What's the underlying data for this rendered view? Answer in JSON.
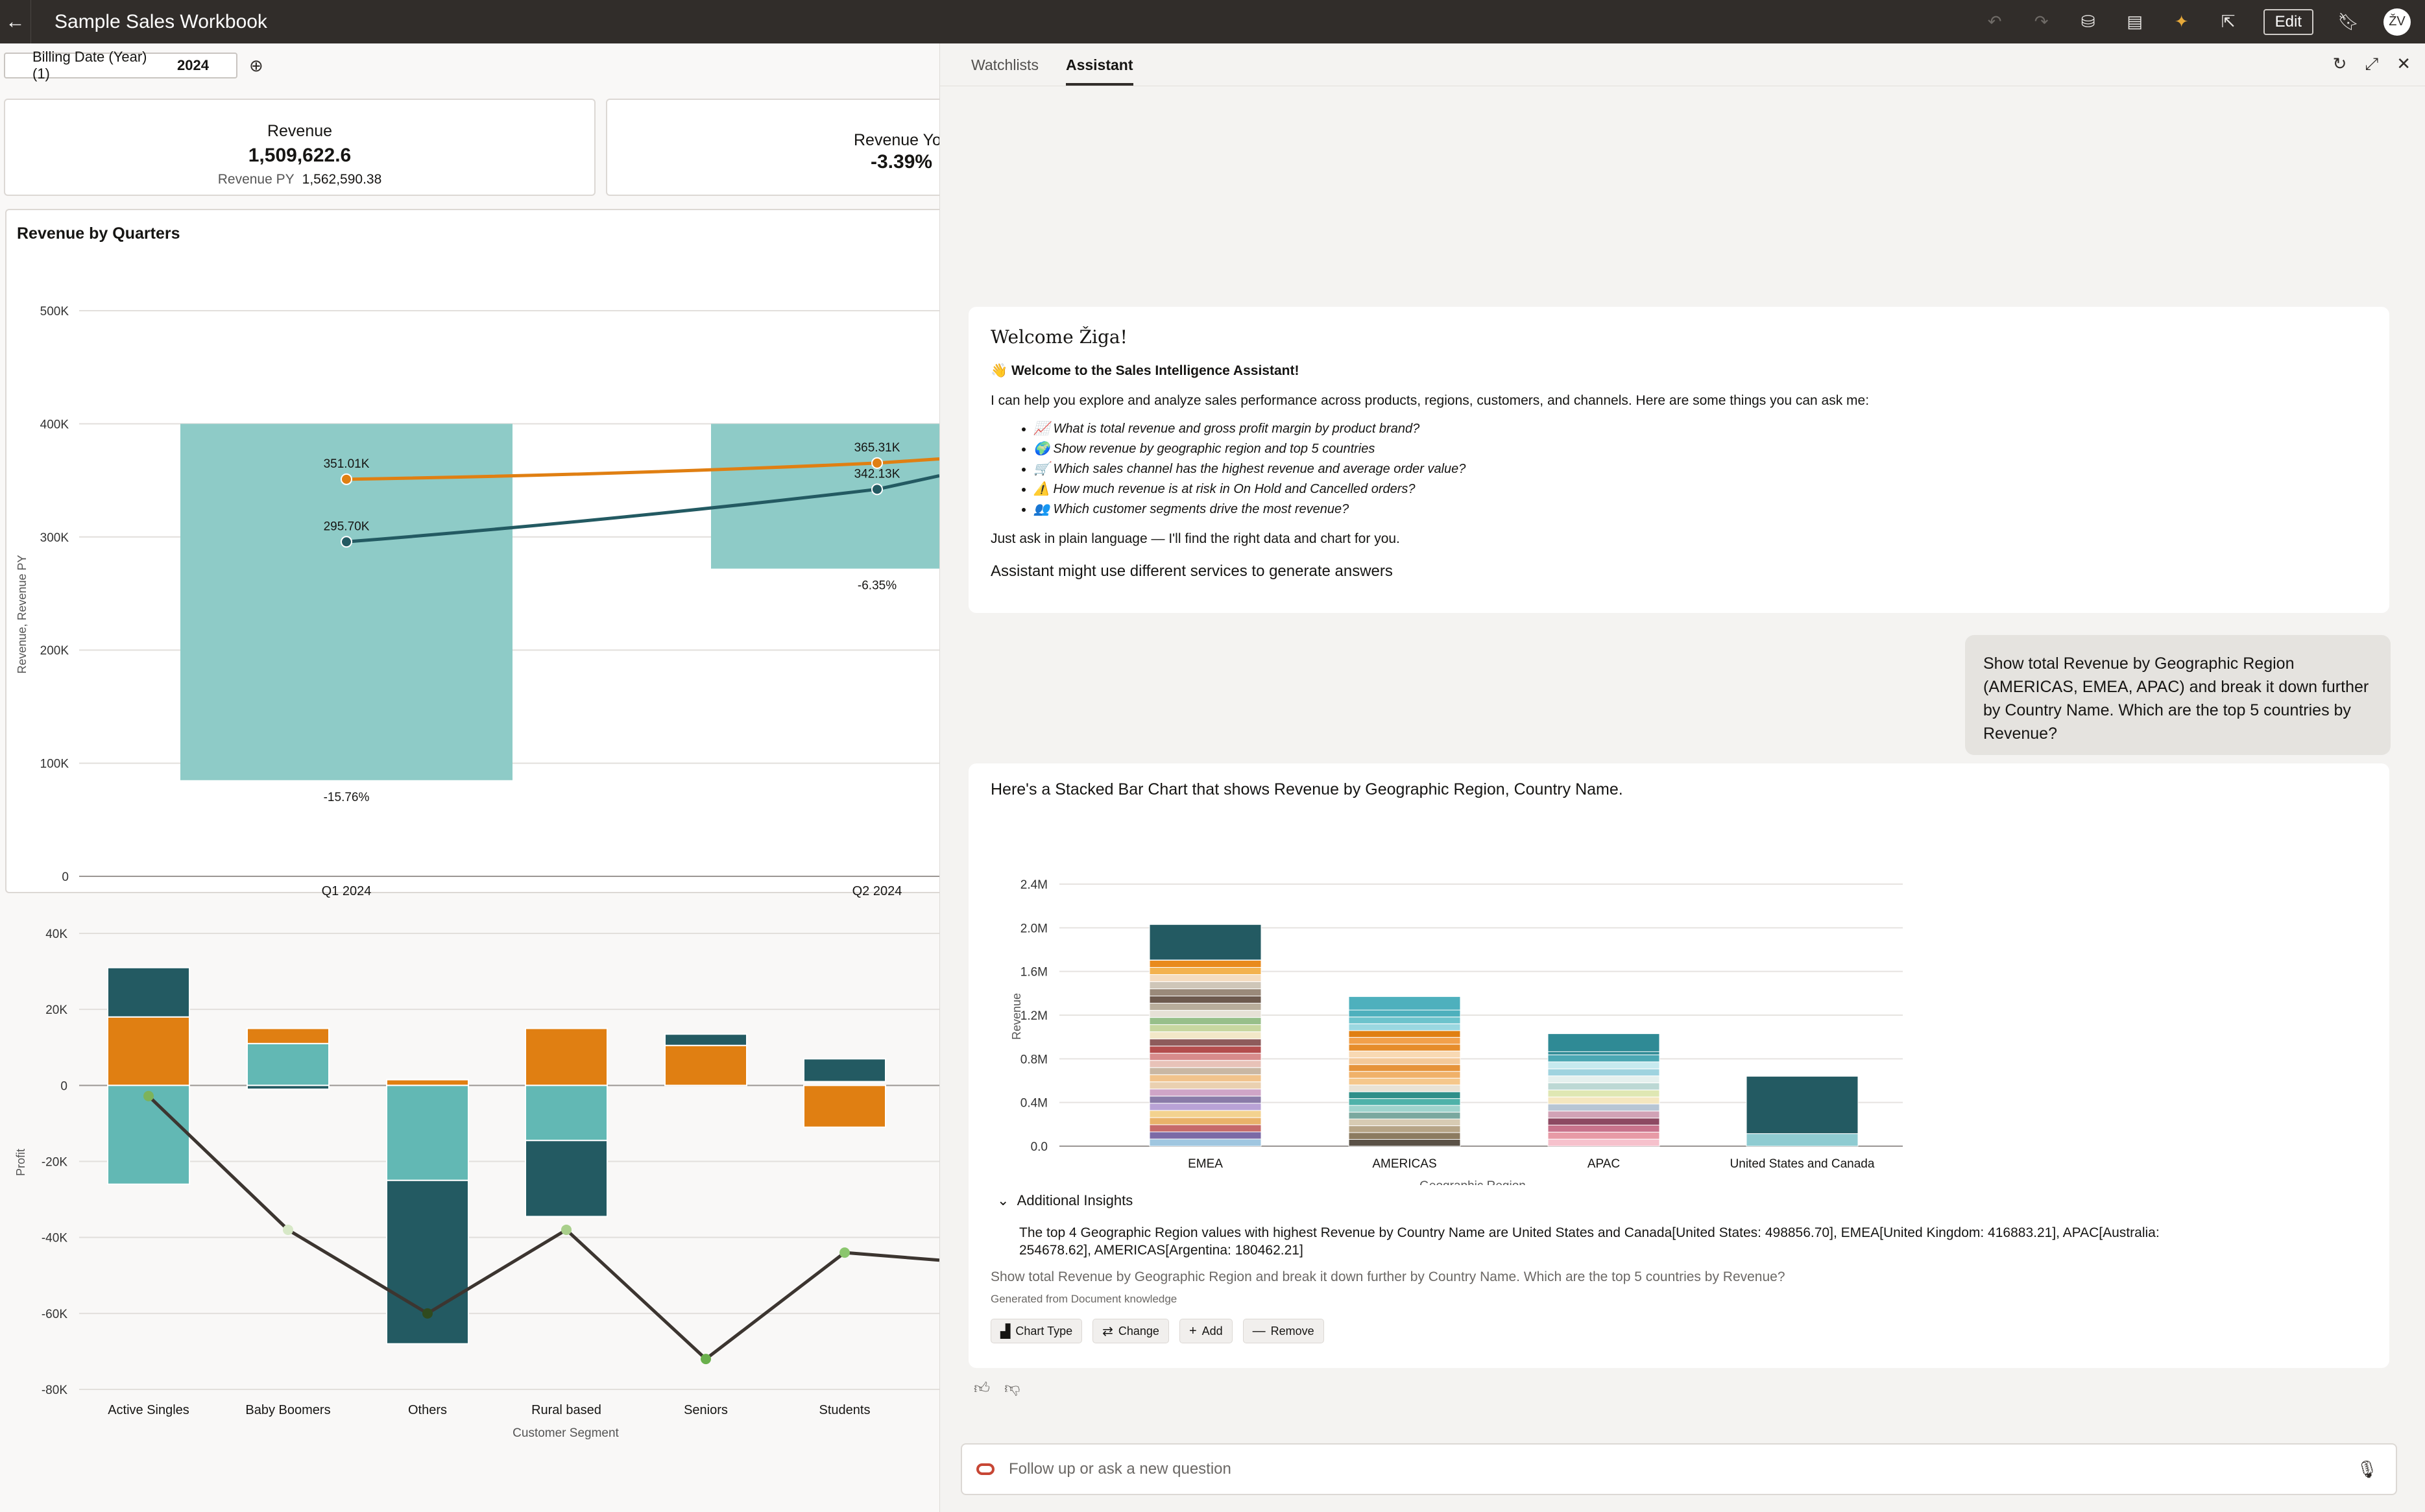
{
  "app": {
    "title": "Sample Sales Workbook",
    "edit_label": "Edit",
    "avatar_initials": "ŽV"
  },
  "filter": {
    "label": "Billing Date (Year) (1)",
    "value": "2024"
  },
  "kpis": [
    {
      "title": "Revenue",
      "value": "1,509,622.6",
      "sub_label": "Revenue PY",
      "sub_value": "1,562,590.38"
    },
    {
      "title": "Revenue YoY",
      "value": "-3.39%"
    }
  ],
  "quarters_chart": {
    "title": "Revenue by Quarters",
    "ylabel": "Revenue, Revenue PY",
    "y_ticks": [
      "500K",
      "400K",
      "300K",
      "200K",
      "100K",
      "0"
    ],
    "categories": [
      "Q1 2024",
      "Q2 2024"
    ],
    "line_labels_py": [
      "351.01K",
      "365.31K"
    ],
    "line_labels_rev": [
      "295.70K",
      "342.13K"
    ],
    "pct_labels": [
      "-15.76%",
      "-6.35%"
    ]
  },
  "chart_data": [
    {
      "type": "bar",
      "title": "Revenue by Quarters",
      "ylabel": "Revenue, Revenue PY",
      "categories": [
        "Q1 2024",
        "Q2 2024"
      ],
      "ylim": [
        0,
        500000
      ],
      "series": [
        {
          "name": "Revenue",
          "values": [
            295700,
            342130
          ]
        },
        {
          "name": "Revenue PY",
          "values": [
            351010,
            365310
          ]
        }
      ],
      "bar_ranges": [
        [
          85000,
          400000
        ],
        [
          272000,
          400000
        ]
      ],
      "pct_change": [
        "-15.76%",
        "-6.35%"
      ],
      "grid": true
    },
    {
      "type": "bar",
      "ylabel": "Profit",
      "xlabel": "Customer Segment",
      "categories": [
        "Active Singles",
        "Baby Boomers",
        "Others",
        "Rural based",
        "Seniors",
        "Students"
      ],
      "ylim": [
        -80000,
        40000
      ],
      "stacks": [
        [
          [
            18000,
            31000,
            "#235a62"
          ],
          [
            0,
            18000,
            "#e07f12"
          ],
          [
            -26000,
            0,
            "#62b8b4"
          ]
        ],
        [
          [
            11000,
            15000,
            "#e07f12"
          ],
          [
            0,
            11000,
            "#62b8b4"
          ],
          [
            -1000,
            0,
            "#235a62"
          ]
        ],
        [
          [
            0,
            1500,
            "#e07f12"
          ],
          [
            -25000,
            0,
            "#62b8b4"
          ],
          [
            -68000,
            -25000,
            "#235a62"
          ]
        ],
        [
          [
            0,
            15000,
            "#e07f12"
          ],
          [
            -14500,
            0,
            "#62b8b4"
          ],
          [
            -34500,
            -14500,
            "#235a62"
          ]
        ],
        [
          [
            10500,
            13500,
            "#235a62"
          ],
          [
            0,
            10500,
            "#e07f12"
          ]
        ],
        [
          [
            1000,
            7000,
            "#235a62"
          ],
          [
            -11000,
            0,
            "#e07f12"
          ]
        ]
      ],
      "line": [
        -2800,
        -38000,
        -60000,
        -38000,
        -72000,
        -44000,
        -46000
      ],
      "y_ticks": [
        "40K",
        "20K",
        "0",
        "-20K",
        "-40K",
        "-60K",
        "-80K"
      ],
      "grid": true
    },
    {
      "type": "bar",
      "title": "Revenue by Geographic Region, Country Name",
      "xlabel": "Geographic Region",
      "ylabel": "Revenue",
      "categories": [
        "EMEA",
        "AMERICAS",
        "APAC",
        "United States and Canada"
      ],
      "values": [
        2030000,
        1370000,
        1030000,
        640000
      ],
      "y_ticks": [
        "2.4M",
        "2.0M",
        "1.6M",
        "1.2M",
        "0.8M",
        "0.4M",
        "0.0"
      ],
      "ylim": [
        0,
        2400000
      ],
      "grid": true
    }
  ],
  "segments_chart": {
    "ylabel": "Profit",
    "xlabel": "Customer Segment",
    "y_ticks": [
      "40K",
      "20K",
      "0",
      "-20K",
      "-40K",
      "-60K",
      "-80K"
    ],
    "categories": [
      "Active Singles",
      "Baby Boomers",
      "Others",
      "Rural based",
      "Seniors",
      "Students"
    ]
  },
  "panel": {
    "tabs": [
      "Watchlists",
      "Assistant"
    ],
    "welcome_title": "Welcome Žiga!",
    "welcome_bold": "👋 Welcome to the Sales Intelligence Assistant!",
    "welcome_intro": "I can help you explore and analyze sales performance across products, regions, customers, and channels. Here are some things you can ask me:",
    "suggestions": [
      "📈 What is total revenue and gross profit margin by product brand?",
      "🌍 Show revenue by geographic region and top 5 countries",
      "🛒 Which sales channel has the highest revenue and average order value?",
      "⚠️ How much revenue is at risk in On Hold and Cancelled orders?",
      "👥 Which customer segments drive the most revenue?"
    ],
    "welcome_outro": "Just ask in plain language — I'll find the right data and chart for you.",
    "disclaimer": "Assistant might use different services to generate answers",
    "user_question": "Show total Revenue by Geographic Region (AMERICAS, EMEA, APAC) and break it down further by Country Name. Which are the top 5 countries by Revenue?",
    "answer_intro": "Here's a Stacked Bar Chart that shows Revenue by Geographic Region, Country Name.",
    "region_chart": {
      "ylabel": "Revenue",
      "xlabel": "Geographic Region",
      "y_ticks": [
        "2.4M",
        "2.0M",
        "1.6M",
        "1.2M",
        "0.8M",
        "0.4M",
        "0.0"
      ],
      "categories": [
        "EMEA",
        "AMERICAS",
        "APAC",
        "United States and Canada"
      ]
    },
    "insights_toggle": "Additional Insights",
    "insights_text": "The top 4 Geographic Region values with highest Revenue by Country Name are United States and Canada[United States: 498856.70], EMEA[United Kingdom: 416883.21], APAC[Australia: 254678.62], AMERICAS[Argentina: 180462.21]",
    "insight_question": "Show total Revenue by Geographic Region and break it down further by Country Name. Which are the top 5 countries by Revenue?",
    "generated_from": "Generated from Document knowledge",
    "actions": [
      "Chart Type",
      "Change",
      "Add",
      "Remove"
    ],
    "input_placeholder": "Follow up or ask a new question"
  }
}
